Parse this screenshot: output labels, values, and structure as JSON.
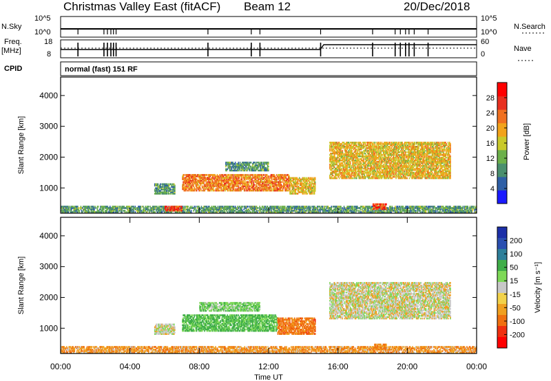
{
  "header": {
    "station": "Christmas Valley East (fitACF)",
    "beam": "Beam 12",
    "date": "20/Dec/2018"
  },
  "status_panel": {
    "nsky_label": "N.Sky",
    "nsearch_label": "N.Search",
    "nsky_ticks": [
      "10^5",
      "10^0"
    ],
    "nsearch_ticks": [
      "10^5",
      "10^0"
    ],
    "freq_label_line1": "Freq.",
    "freq_label_line2": "[MHz]",
    "freq_ticks": [
      "18",
      "8"
    ],
    "nave_label": "Nave",
    "nave_ticks": [
      "60",
      "0"
    ],
    "cpid_label": "CPID",
    "cpid_value": "normal (fast) 151 RF"
  },
  "colors": {
    "power_scale": [
      "#1a1aff",
      "#2e5fa6",
      "#4a8f6e",
      "#6cb04a",
      "#c9c92a",
      "#f2a31a",
      "#f07020",
      "#e83020",
      "#ff0000"
    ],
    "velocity_scale": [
      "#ff0000",
      "#f03010",
      "#f07010",
      "#f0a020",
      "#f2d24a",
      "#c8c8c8",
      "#7ed957",
      "#3fae48",
      "#2e7f9a",
      "#2a4fb0",
      "#1c2fa8"
    ]
  },
  "chart_data": [
    {
      "type": "heatmap",
      "name": "power",
      "xlabel": "",
      "ylabel": "Slant Range [km]",
      "yticks": [
        "1000",
        "2000",
        "3000",
        "4000"
      ],
      "ylim": [
        180,
        4600
      ],
      "xlim": [
        "00:00",
        "24:00"
      ],
      "colorbar": {
        "label": "Power [dB]",
        "ticks": [
          "4",
          "8",
          "12",
          "16",
          "20",
          "24",
          "28"
        ],
        "range": [
          0,
          32
        ]
      },
      "echo_regions": [
        {
          "t0": 0.0,
          "t1": 24.0,
          "r0": 200,
          "r1": 420,
          "value": 10
        },
        {
          "t0": 6.0,
          "t1": 7.0,
          "r0": 250,
          "r1": 420,
          "value": 26
        },
        {
          "t0": 5.4,
          "t1": 6.6,
          "r0": 800,
          "r1": 1150,
          "value": 10
        },
        {
          "t0": 7.0,
          "t1": 13.2,
          "r0": 900,
          "r1": 1450,
          "value": 22
        },
        {
          "t0": 9.5,
          "t1": 12.0,
          "r0": 1550,
          "r1": 1850,
          "value": 10
        },
        {
          "t0": 13.2,
          "t1": 14.7,
          "r0": 800,
          "r1": 1350,
          "value": 18
        },
        {
          "t0": 15.5,
          "t1": 22.5,
          "r0": 1300,
          "r1": 2500,
          "value": 18
        },
        {
          "t0": 18.0,
          "t1": 18.8,
          "r0": 300,
          "r1": 500,
          "value": 26
        }
      ]
    },
    {
      "type": "heatmap",
      "name": "velocity",
      "xlabel": "Time UT",
      "ylabel": "Slant Range [km]",
      "xticks": [
        "00:00",
        "04:00",
        "08:00",
        "12:00",
        "16:00",
        "20:00",
        "00:00"
      ],
      "yticks": [
        "1000",
        "2000",
        "3000",
        "4000"
      ],
      "ylim": [
        180,
        4600
      ],
      "xlim": [
        "00:00",
        "24:00"
      ],
      "colorbar": {
        "label": "Velocity [m s⁻¹]",
        "ticks": [
          "200",
          "100",
          "50",
          "15",
          "-15",
          "-50",
          "-100",
          "-200"
        ]
      },
      "echo_regions": [
        {
          "t0": 0.0,
          "t1": 24.0,
          "r0": 200,
          "r1": 420,
          "value": -40
        },
        {
          "t0": 5.4,
          "t1": 6.6,
          "r0": 800,
          "r1": 1150,
          "value": 0
        },
        {
          "t0": 7.0,
          "t1": 12.5,
          "r0": 900,
          "r1": 1450,
          "value": 60
        },
        {
          "t0": 8.0,
          "t1": 11.5,
          "r0": 1550,
          "r1": 1850,
          "value": 40
        },
        {
          "t0": 12.5,
          "t1": 14.7,
          "r0": 800,
          "r1": 1350,
          "value": -70
        },
        {
          "t0": 15.5,
          "t1": 22.5,
          "r0": 1300,
          "r1": 2500,
          "value": 0
        },
        {
          "t0": 18.0,
          "t1": 18.8,
          "r0": 300,
          "r1": 500,
          "value": -60
        }
      ]
    }
  ]
}
